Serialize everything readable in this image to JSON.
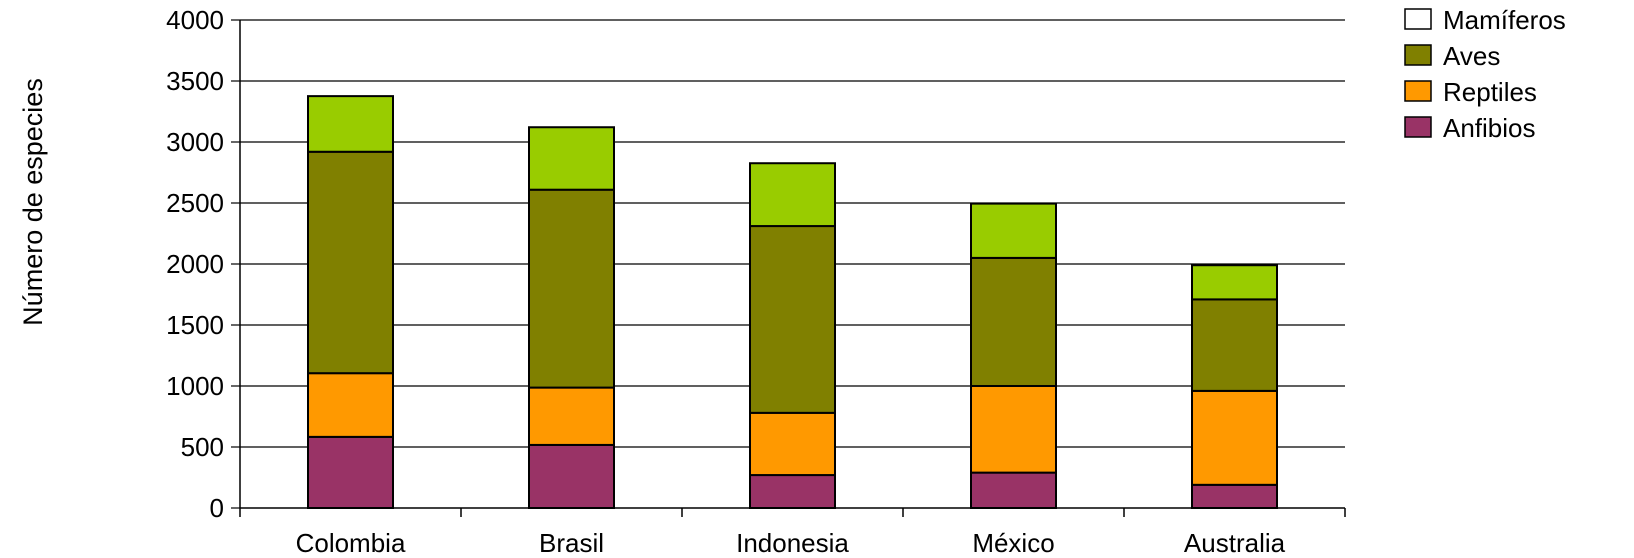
{
  "chart_data": {
    "type": "bar",
    "stacked": true,
    "title": "",
    "xlabel": "",
    "ylabel": "Número de especies",
    "ylim": [
      0,
      4000
    ],
    "yticks": [
      0,
      500,
      1000,
      1500,
      2000,
      2500,
      3000,
      3500,
      4000
    ],
    "categories": [
      "Colombia",
      "Brasil",
      "Indonesia",
      "México",
      "Australia"
    ],
    "series": [
      {
        "name": "Anfibios",
        "color": "#993366",
        "values": [
          583,
          517,
          270,
          290,
          190
        ]
      },
      {
        "name": "Reptiles",
        "color": "#ff9900",
        "values": [
          522,
          470,
          510,
          710,
          770
        ]
      },
      {
        "name": "Aves",
        "color": "#808000",
        "values": [
          1815,
          1622,
          1531,
          1050,
          750
        ]
      },
      {
        "name": "Mamíferos",
        "color": "#99cc00",
        "values": [
          456,
          512,
          515,
          445,
          280
        ]
      }
    ],
    "legend": {
      "position": "top-right",
      "entries": [
        {
          "label": "Mamíferos",
          "swatch": "#ffffff"
        },
        {
          "label": "Aves",
          "swatch": "#808000"
        },
        {
          "label": "Reptiles",
          "swatch": "#ff9900"
        },
        {
          "label": "Anfibios",
          "swatch": "#993366"
        }
      ]
    },
    "grid": true
  }
}
